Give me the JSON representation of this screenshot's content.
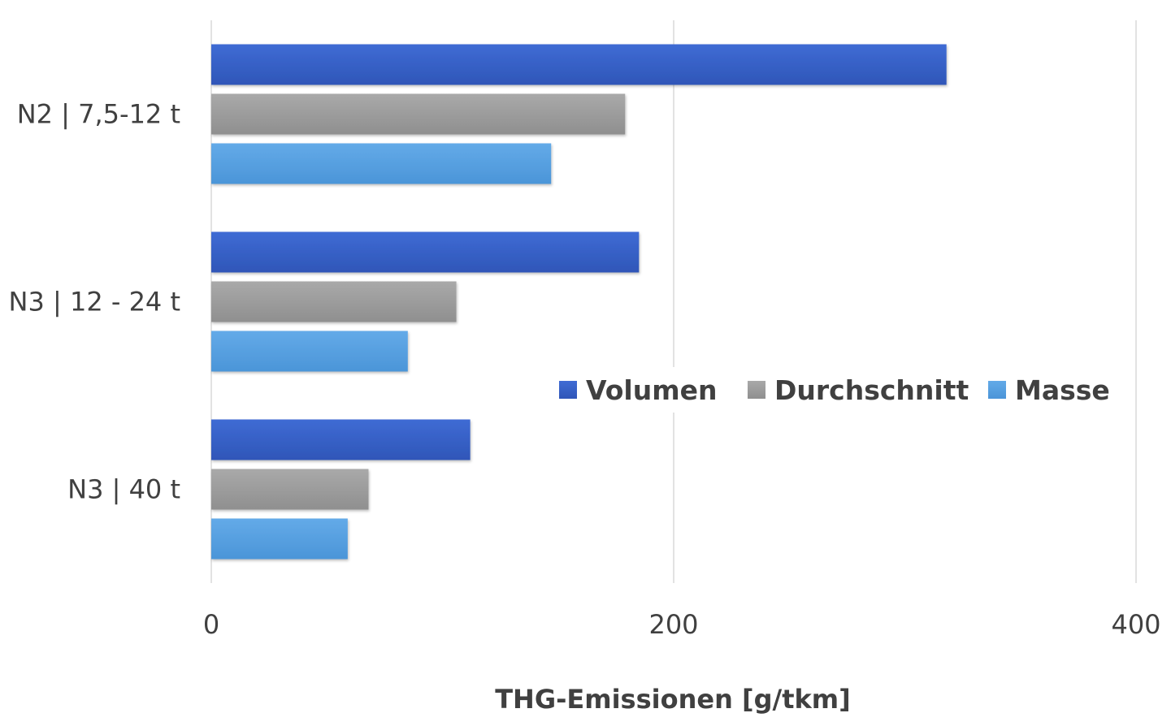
{
  "chart_data": {
    "type": "bar",
    "orientation": "horizontal",
    "categories": [
      "N2 | 7,5-12 t",
      "N3 | 12 - 24 t",
      "N3 | 40 t"
    ],
    "series": [
      {
        "name": "Volumen",
        "values": [
          318,
          185,
          112
        ],
        "color": "#3a64c9"
      },
      {
        "name": "Durchschnitt",
        "values": [
          179,
          106,
          68
        ],
        "color": "#a0a0a0"
      },
      {
        "name": "Masse",
        "values": [
          147,
          85,
          59
        ],
        "color": "#5ba3e3"
      }
    ],
    "xlabel": "THG-Emissionen [g/tkm]",
    "xlim": [
      0,
      400
    ],
    "xticks": [
      "0",
      "200",
      "400"
    ],
    "grid": true,
    "legend_position": "inside-right"
  }
}
